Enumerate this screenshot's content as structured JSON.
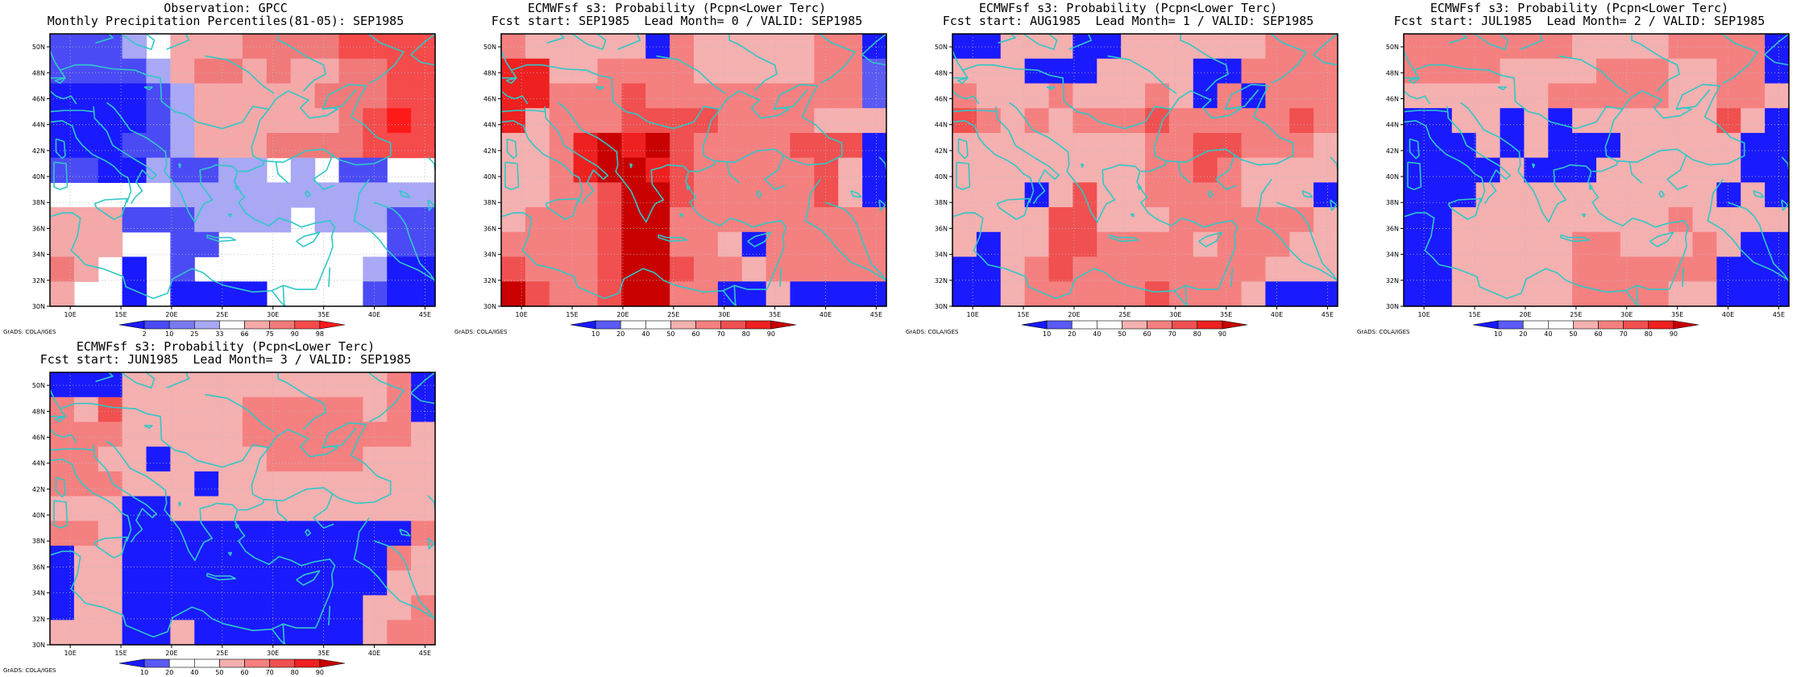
{
  "credit": "GrADS: COLA/IGES",
  "colors": {
    "coast": "#2fc8c8",
    "grid": "#bbbbbb",
    "frame": "#000000"
  },
  "map": {
    "lon_labels": [
      "10E",
      "15E",
      "20E",
      "25E",
      "30E",
      "35E",
      "40E",
      "45E"
    ],
    "lat_labels": [
      "30N",
      "32N",
      "34N",
      "36N",
      "38N",
      "40N",
      "42N",
      "44N",
      "46N",
      "48N",
      "50N"
    ]
  },
  "panels": [
    {
      "title1": "Observation: GPCC",
      "title2": "Monthly Precipitation Percentiles(81-05): SEP1985",
      "colorbar": {
        "labels": [
          "2",
          "10",
          "25",
          "33",
          "66",
          "75",
          "90",
          "98"
        ],
        "colors": [
          "#1a1aff",
          "#4b4bf5",
          "#7a7af0",
          "#a8a8f5",
          "#ffffff",
          "#f5a8a8",
          "#f07a7a",
          "#f54b4b",
          "#ff1a1a"
        ]
      },
      "grid": [
        "LLLMNPPPQQQQRRRR",
        "LLLLMPQQPQPPQQRR",
        "KKKKLMPPPPPQQQRR",
        "KKKKLMPPPPPPQRSR",
        "KKKLLMPPPQQQQRRR",
        "LLKKMLLMMNMNLLNN",
        "NNNNNMMMMMMMMMMM",
        "PPPLLLMMMMNMMMLL",
        "PPPNNLLNNNNNNNLL",
        "QPNKNLNNNNNNNMKK",
        "PNNKNKKKKNNNNLKK"
      ]
    },
    {
      "title1": "ECMWFsf s3: Probability (Pcpn<Lower Terc)",
      "title2": "Fcst start: SEP1985  Lead Month= 0 / VALID: SEP1985",
      "colorbar": {
        "labels": [
          "10",
          "20",
          "40",
          "50",
          "60",
          "70",
          "80",
          "90"
        ],
        "colors": [
          "#1a1aff",
          "#5a5af5",
          "#ffffff",
          "#ffffff",
          "#f5b0b0",
          "#f58080",
          "#f05050",
          "#ee2020",
          "#c80000"
        ]
      },
      "grid": [
        "PNNNNNAPNNNNNPPA",
        "RRNNPPPPNNNNNPPB",
        "RRPPPQPPPPPPPPPB",
        "RNPPPQQQQPPPPNNN",
        "NNPRSRSQPPPPQQQA",
        "NNPRSSRQPPPPPQNA",
        "NNPPQSSQPPPPPQNA",
        "NPPPQSSPPPPPPPPP",
        "PPPPQSSPPNAPPPPP",
        "QPPPQSSQPPNPPPPP",
        "SQPPQSSPPAANAAAA"
      ]
    },
    {
      "title1": "ECMWFsf s3: Probability (Pcpn<Lower Terc)",
      "title2": "Fcst start: AUG1985  Lead Month= 1 / VALID: SEP1985",
      "colorbar": {
        "labels": [
          "10",
          "20",
          "40",
          "50",
          "60",
          "70",
          "80",
          "90"
        ],
        "colors": [
          "#1a1aff",
          "#5a5af5",
          "#ffffff",
          "#ffffff",
          "#f5b0b0",
          "#f58080",
          "#f05050",
          "#ee2020",
          "#c80000"
        ]
      },
      "grid": [
        "AANNNAANNNNNNPPP",
        "NNNAAANNNNAAPPPP",
        "PNNNPNNNPNAPAPPP",
        "QPNPNPPPQPPPPPQP",
        "NNNNNNNNPPQQPPPN",
        "NNNNNNNNPPQPNNNN",
        "NNNANQNNPPPPNNNA",
        "NNNNQQNNNPPPPPPN",
        "NANNQQPPPPNPPPNN",
        "AANPQPPPPPPPPNNN",
        "AANPPPPPQPPPNAAA"
      ]
    },
    {
      "title1": "ECMWFsf s3: Probability (Pcpn<Lower Terc)",
      "title2": "Fcst start: JUL1985  Lead Month= 2 / VALID: SEP1985",
      "colorbar": {
        "labels": [
          "10",
          "20",
          "40",
          "50",
          "60",
          "70",
          "80",
          "90"
        ],
        "colors": [
          "#1a1aff",
          "#5a5af5",
          "#ffffff",
          "#ffffff",
          "#f5b0b0",
          "#f58080",
          "#f05050",
          "#ee2020",
          "#c80000"
        ]
      },
      "grid": [
        "PPPPPPPNNNNPPPPA",
        "PPPPNNNNPPPNNPPA",
        "NNNNNNPPPPPNNPPN",
        "AANNANANNNNNNQNA",
        "AAANANAAANNNNNAA",
        "AAAANAAANNNNNNAA",
        "AAANNNNNNNNNNANA",
        "AANNNNNNNNNPNNNN",
        "AANNNNNPPNNNPNAA",
        "AANNNNNPPPPPPAAA",
        "AANNNNNPPPPNNAAA"
      ]
    },
    {
      "title1": "ECMWFsf s3: Probability (Pcpn<Lower Terc)",
      "title2": "Fcst start: JUN1985  Lead Month= 3 / VALID: SEP1985",
      "colorbar": {
        "labels": [
          "10",
          "20",
          "40",
          "50",
          "60",
          "70",
          "80",
          "90"
        ],
        "colors": [
          "#1a1aff",
          "#5a5af5",
          "#ffffff",
          "#ffffff",
          "#f5b0b0",
          "#f58080",
          "#f05050",
          "#ee2020",
          "#c80000"
        ]
      },
      "grid": [
        "AAANNNNNNNNNNNPA",
        "PNQNNNNNPPPPPNPA",
        "PPPNNNNNPPPPPPPN",
        "PPNNANNNNPPPPNNN",
        "PPPNNNANNNNNNNNN",
        "NNNAANNNNNNNNNNN",
        "PPNAAAAAAAAAAAAP",
        "ANNAAAAAAAAAAAPN",
        "ANNAAAAAAAAAAANN",
        "ANNAAAAAAAAAANNP",
        "NNNAANAAAAAAANPP"
      ]
    }
  ]
}
